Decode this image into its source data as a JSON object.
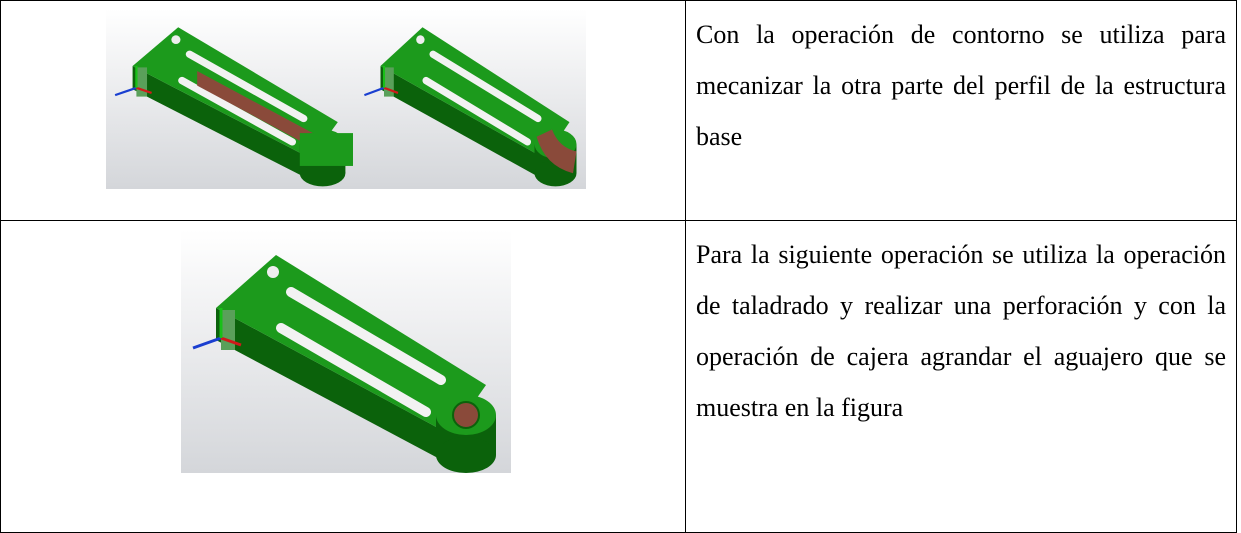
{
  "table": {
    "rows": [
      {
        "text": "Con la operación de contorno se utiliza para mecanizar la otra parte del perfil de la estructura base"
      },
      {
        "text": "Para la siguiente operación se utiliza la operación de taladrado y realizar una perforación y con la operación de cajera agrandar el aguajero que se muestra en la figura"
      }
    ]
  }
}
